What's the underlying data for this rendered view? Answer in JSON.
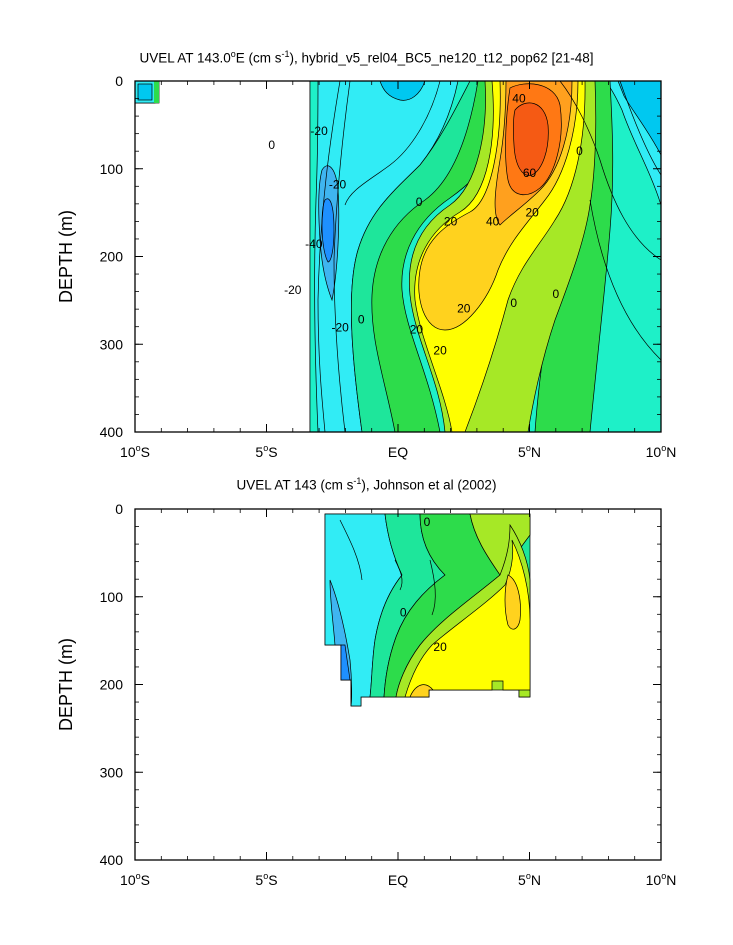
{
  "chart_data": [
    {
      "type": "contour",
      "title": {
        "parts": [
          "UVEL AT 143.0",
          "o",
          "E (cm s",
          "-1",
          "), hybrid_v5_rel04_BC5_ne120_t12_pop62 [21-48]"
        ]
      },
      "ylabel": "DEPTH (m)",
      "xlabel": "",
      "xlim": [
        -10,
        10
      ],
      "ylim": [
        0,
        400
      ],
      "y_inverted": true,
      "x_ticks": [
        {
          "value": -10,
          "label": "10",
          "deg": "o",
          "hemi": "S"
        },
        {
          "value": -5,
          "label": "5",
          "deg": "o",
          "hemi": "S"
        },
        {
          "value": 0,
          "label": "EQ",
          "deg": "",
          "hemi": ""
        },
        {
          "value": 5,
          "label": "5",
          "deg": "o",
          "hemi": "N"
        },
        {
          "value": 10,
          "label": "10",
          "deg": "o",
          "hemi": "N"
        }
      ],
      "y_ticks": [
        {
          "value": 0,
          "label": "0"
        },
        {
          "value": 100,
          "label": "100"
        },
        {
          "value": 200,
          "label": "200"
        },
        {
          "value": 300,
          "label": "300"
        },
        {
          "value": 400,
          "label": "400"
        }
      ],
      "contour_labels": [
        {
          "x": 4.6,
          "y": 20,
          "text": "40"
        },
        {
          "x": 5.0,
          "y": 105,
          "text": "60"
        },
        {
          "x": 2.0,
          "y": 160,
          "text": "20"
        },
        {
          "x": 3.6,
          "y": 160,
          "text": "40"
        },
        {
          "x": 0.8,
          "y": 138,
          "text": "0"
        },
        {
          "x": 6.9,
          "y": 80,
          "text": "0"
        },
        {
          "x": 5.1,
          "y": 150,
          "text": "20"
        },
        {
          "x": -3.0,
          "y": 57,
          "text": "-20"
        },
        {
          "x": -2.3,
          "y": 118,
          "text": "-20"
        },
        {
          "x": -4.8,
          "y": 73,
          "text": "0"
        },
        {
          "x": -3.2,
          "y": 186,
          "text": "-40"
        },
        {
          "x": -4.0,
          "y": 238,
          "text": "-20"
        },
        {
          "x": -1.4,
          "y": 272,
          "text": "0"
        },
        {
          "x": 0.7,
          "y": 283,
          "text": "20"
        },
        {
          "x": -2.2,
          "y": 281,
          "text": "-20"
        },
        {
          "x": 1.6,
          "y": 307,
          "text": "20"
        },
        {
          "x": 2.5,
          "y": 259,
          "text": "20"
        },
        {
          "x": 4.4,
          "y": 253,
          "text": "0"
        },
        {
          "x": 6.0,
          "y": 243,
          "text": "0"
        }
      ]
    },
    {
      "type": "contour",
      "title": {
        "parts": [
          "UVEL AT 143 (cm s",
          "-1",
          "), Johnson et al (2002)"
        ]
      },
      "ylabel": "DEPTH (m)",
      "xlabel": "",
      "xlim": [
        -10,
        10
      ],
      "ylim": [
        0,
        400
      ],
      "y_inverted": true,
      "x_ticks": [
        {
          "value": -10,
          "label": "10",
          "deg": "o",
          "hemi": "S"
        },
        {
          "value": -5,
          "label": "5",
          "deg": "o",
          "hemi": "S"
        },
        {
          "value": 0,
          "label": "EQ",
          "deg": "",
          "hemi": ""
        },
        {
          "value": 5,
          "label": "5",
          "deg": "o",
          "hemi": "N"
        },
        {
          "value": 10,
          "label": "10",
          "deg": "o",
          "hemi": "N"
        }
      ],
      "y_ticks": [
        {
          "value": 0,
          "label": "0"
        },
        {
          "value": 100,
          "label": "100"
        },
        {
          "value": 200,
          "label": "200"
        },
        {
          "value": 300,
          "label": "300"
        },
        {
          "value": 400,
          "label": "400"
        }
      ],
      "contour_labels": [
        {
          "x": 1.1,
          "y": 15,
          "text": "0"
        },
        {
          "x": 0.2,
          "y": 118,
          "text": "0"
        },
        {
          "x": 1.6,
          "y": 157,
          "text": "20"
        }
      ]
    }
  ],
  "colors": {
    "deep_blue": "#1e90ff",
    "blue": "#3fb5f0",
    "light_blue": "#00c8f0",
    "cyan": "#31ecf5",
    "aqua": "#1ef0c8",
    "teal_green": "#1ee69b",
    "green": "#2ddc4b",
    "yellow_green": "#a6e826",
    "yellow": "#ffff00",
    "gold": "#ffd21e",
    "orange": "#ffa01e",
    "dark_orange": "#ff7814",
    "red_orange": "#f55a14"
  }
}
